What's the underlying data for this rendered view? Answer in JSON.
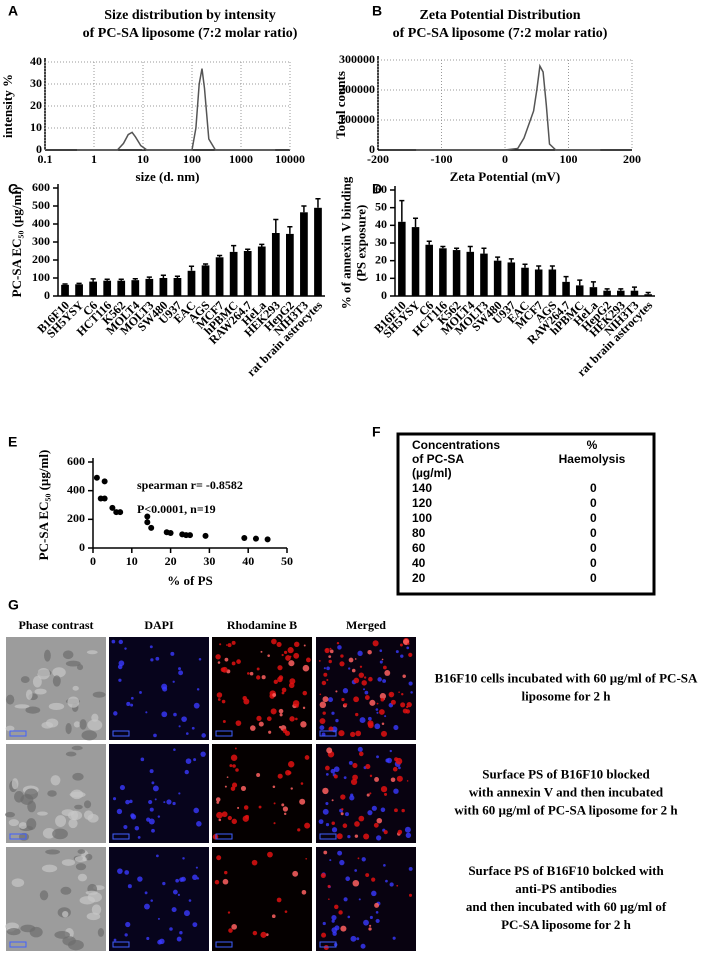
{
  "chart_data": [
    {
      "panel": "A",
      "type": "line",
      "title": [
        "Size distribution by intensity",
        "of PC-SA liposome (7:2 molar ratio)"
      ],
      "xlabel": "size (d. nm)",
      "ylabel": [
        "intensity %"
      ],
      "xlog": true,
      "xlim": [
        0.1,
        10000
      ],
      "xticks": [
        0.1,
        1,
        10,
        100,
        1000,
        10000
      ],
      "ylim": [
        0,
        40
      ],
      "yticks": [
        0,
        10,
        20,
        30,
        40
      ],
      "grid": true,
      "color": "#555555",
      "x": [
        0.45,
        3,
        4,
        5,
        6,
        7,
        9,
        12,
        100,
        120,
        140,
        160,
        180,
        220,
        300,
        5000
      ],
      "y": [
        0,
        0,
        3,
        7,
        8,
        6,
        2,
        0,
        0,
        10,
        30,
        37,
        28,
        5,
        0,
        0
      ]
    },
    {
      "panel": "B",
      "type": "line",
      "title": [
        "Zeta Potential Distribution",
        "of PC-SA liposome (7:2 molar ratio)"
      ],
      "xlabel": "Zeta Potential (mV)",
      "ylabel": [
        "Total counts"
      ],
      "xlog": false,
      "xlim": [
        -200,
        200
      ],
      "xticks": [
        -200,
        -100,
        0,
        100,
        200
      ],
      "ylim": [
        0,
        300000
      ],
      "yticks": [
        0,
        100000,
        200000,
        300000
      ],
      "grid": true,
      "color": "#555555",
      "x": [
        -140,
        0,
        20,
        30,
        40,
        45,
        50,
        55,
        60,
        65,
        70,
        80,
        150
      ],
      "y": [
        0,
        0,
        5000,
        40000,
        100000,
        130000,
        200000,
        280000,
        260000,
        150000,
        20000,
        0,
        0
      ]
    },
    {
      "panel": "C",
      "type": "bar",
      "ylabel": [
        "PC-SA EC₅₀ (µg/ml)"
      ],
      "color": "#000000",
      "categories": [
        "B16F10",
        "SH5YSY",
        "C6",
        "HCT116",
        "K562",
        "MOLT4",
        "MOLT3",
        "SW480",
        "U937",
        "EAC",
        "AGS",
        "MCF7",
        "hPBMC",
        "RAW264.7",
        "HeLa",
        "HEK293",
        "HepG2",
        "NIH3T3",
        "rat brain astrocytes"
      ],
      "values": [
        62,
        65,
        80,
        85,
        85,
        88,
        95,
        100,
        100,
        140,
        170,
        215,
        245,
        250,
        275,
        350,
        345,
        465,
        490
      ],
      "errors": [
        5,
        5,
        15,
        8,
        8,
        8,
        10,
        15,
        10,
        25,
        8,
        10,
        35,
        10,
        12,
        75,
        40,
        35,
        50
      ],
      "ylim": [
        0,
        600
      ],
      "yticks": [
        0,
        100,
        200,
        300,
        400,
        500,
        600
      ]
    },
    {
      "panel": "D",
      "type": "bar",
      "ylabel": [
        "% of annexin V binding",
        "(PS exposure)"
      ],
      "color": "#000000",
      "categories": [
        "B16F10",
        "SH5YSY",
        "C6",
        "HCT116",
        "K562",
        "MOLT4",
        "MOLT3",
        "SW480",
        "U937",
        "EAC",
        "MCF7",
        "AGS",
        "RAW264.7",
        "hPBMC",
        "HeLa",
        "HepG2",
        "HEK293",
        "NIH3T3",
        "rat brain astrocytes"
      ],
      "values": [
        42,
        39,
        29,
        27,
        26,
        25,
        24,
        20,
        19,
        16,
        15,
        15,
        8,
        6,
        5,
        3,
        3,
        3,
        1
      ],
      "errors": [
        12,
        5,
        2,
        1,
        1,
        3,
        3,
        2,
        2,
        2,
        2,
        2,
        3,
        3,
        3,
        1,
        1,
        2,
        1
      ],
      "ylim": [
        0,
        60
      ],
      "yticks": [
        0,
        10,
        20,
        30,
        40,
        50,
        60
      ]
    },
    {
      "panel": "E",
      "type": "scatter",
      "xlabel": "% of PS",
      "ylabel": [
        "PC-SA EC₅₀ (µg/ml)"
      ],
      "annotations": [
        "spearman r= -0.8582",
        "P<0.0001, n=19"
      ],
      "color": "#000000",
      "xlim": [
        0,
        50
      ],
      "xticks": [
        0,
        10,
        20,
        30,
        40,
        50
      ],
      "ylim": [
        0,
        600
      ],
      "yticks": [
        0,
        200,
        400,
        600
      ],
      "x": [
        1,
        3,
        2,
        3,
        5,
        6,
        7,
        14,
        14,
        15,
        19,
        20,
        23,
        24,
        25,
        29,
        39,
        42,
        45
      ],
      "y": [
        490,
        465,
        345,
        345,
        280,
        250,
        250,
        220,
        180,
        140,
        110,
        105,
        95,
        90,
        90,
        85,
        70,
        65,
        60
      ]
    }
  ],
  "table": {
    "panel": "F",
    "header": [
      [
        "Concentrations",
        "of PC-SA",
        "(µg/ml)"
      ],
      [
        "%",
        "Haemolysis"
      ]
    ],
    "rows": [
      [
        140,
        0
      ],
      [
        120,
        0
      ],
      [
        100,
        0
      ],
      [
        80,
        0
      ],
      [
        60,
        0
      ],
      [
        40,
        0
      ],
      [
        20,
        0
      ]
    ]
  },
  "figure_g": {
    "panel": "G",
    "columns": [
      "Phase contrast",
      "DAPI",
      "Rhodamine B",
      "Merged"
    ],
    "captions": [
      [
        "B16F10 cells incubated with 60 µg/ml of PC-SA",
        "liposome for 2 h"
      ],
      [
        "Surface PS of B16F10 blocked",
        "with annexin V and then incubated",
        "with 60 µg/ml of PC-SA liposome for 2 h"
      ],
      [
        "Surface PS of B16F10 bolcked with",
        "anti-PS antibodies",
        "and then incubated with 60 µg/ml of",
        "PC-SA liposome for 2 h"
      ]
    ]
  }
}
